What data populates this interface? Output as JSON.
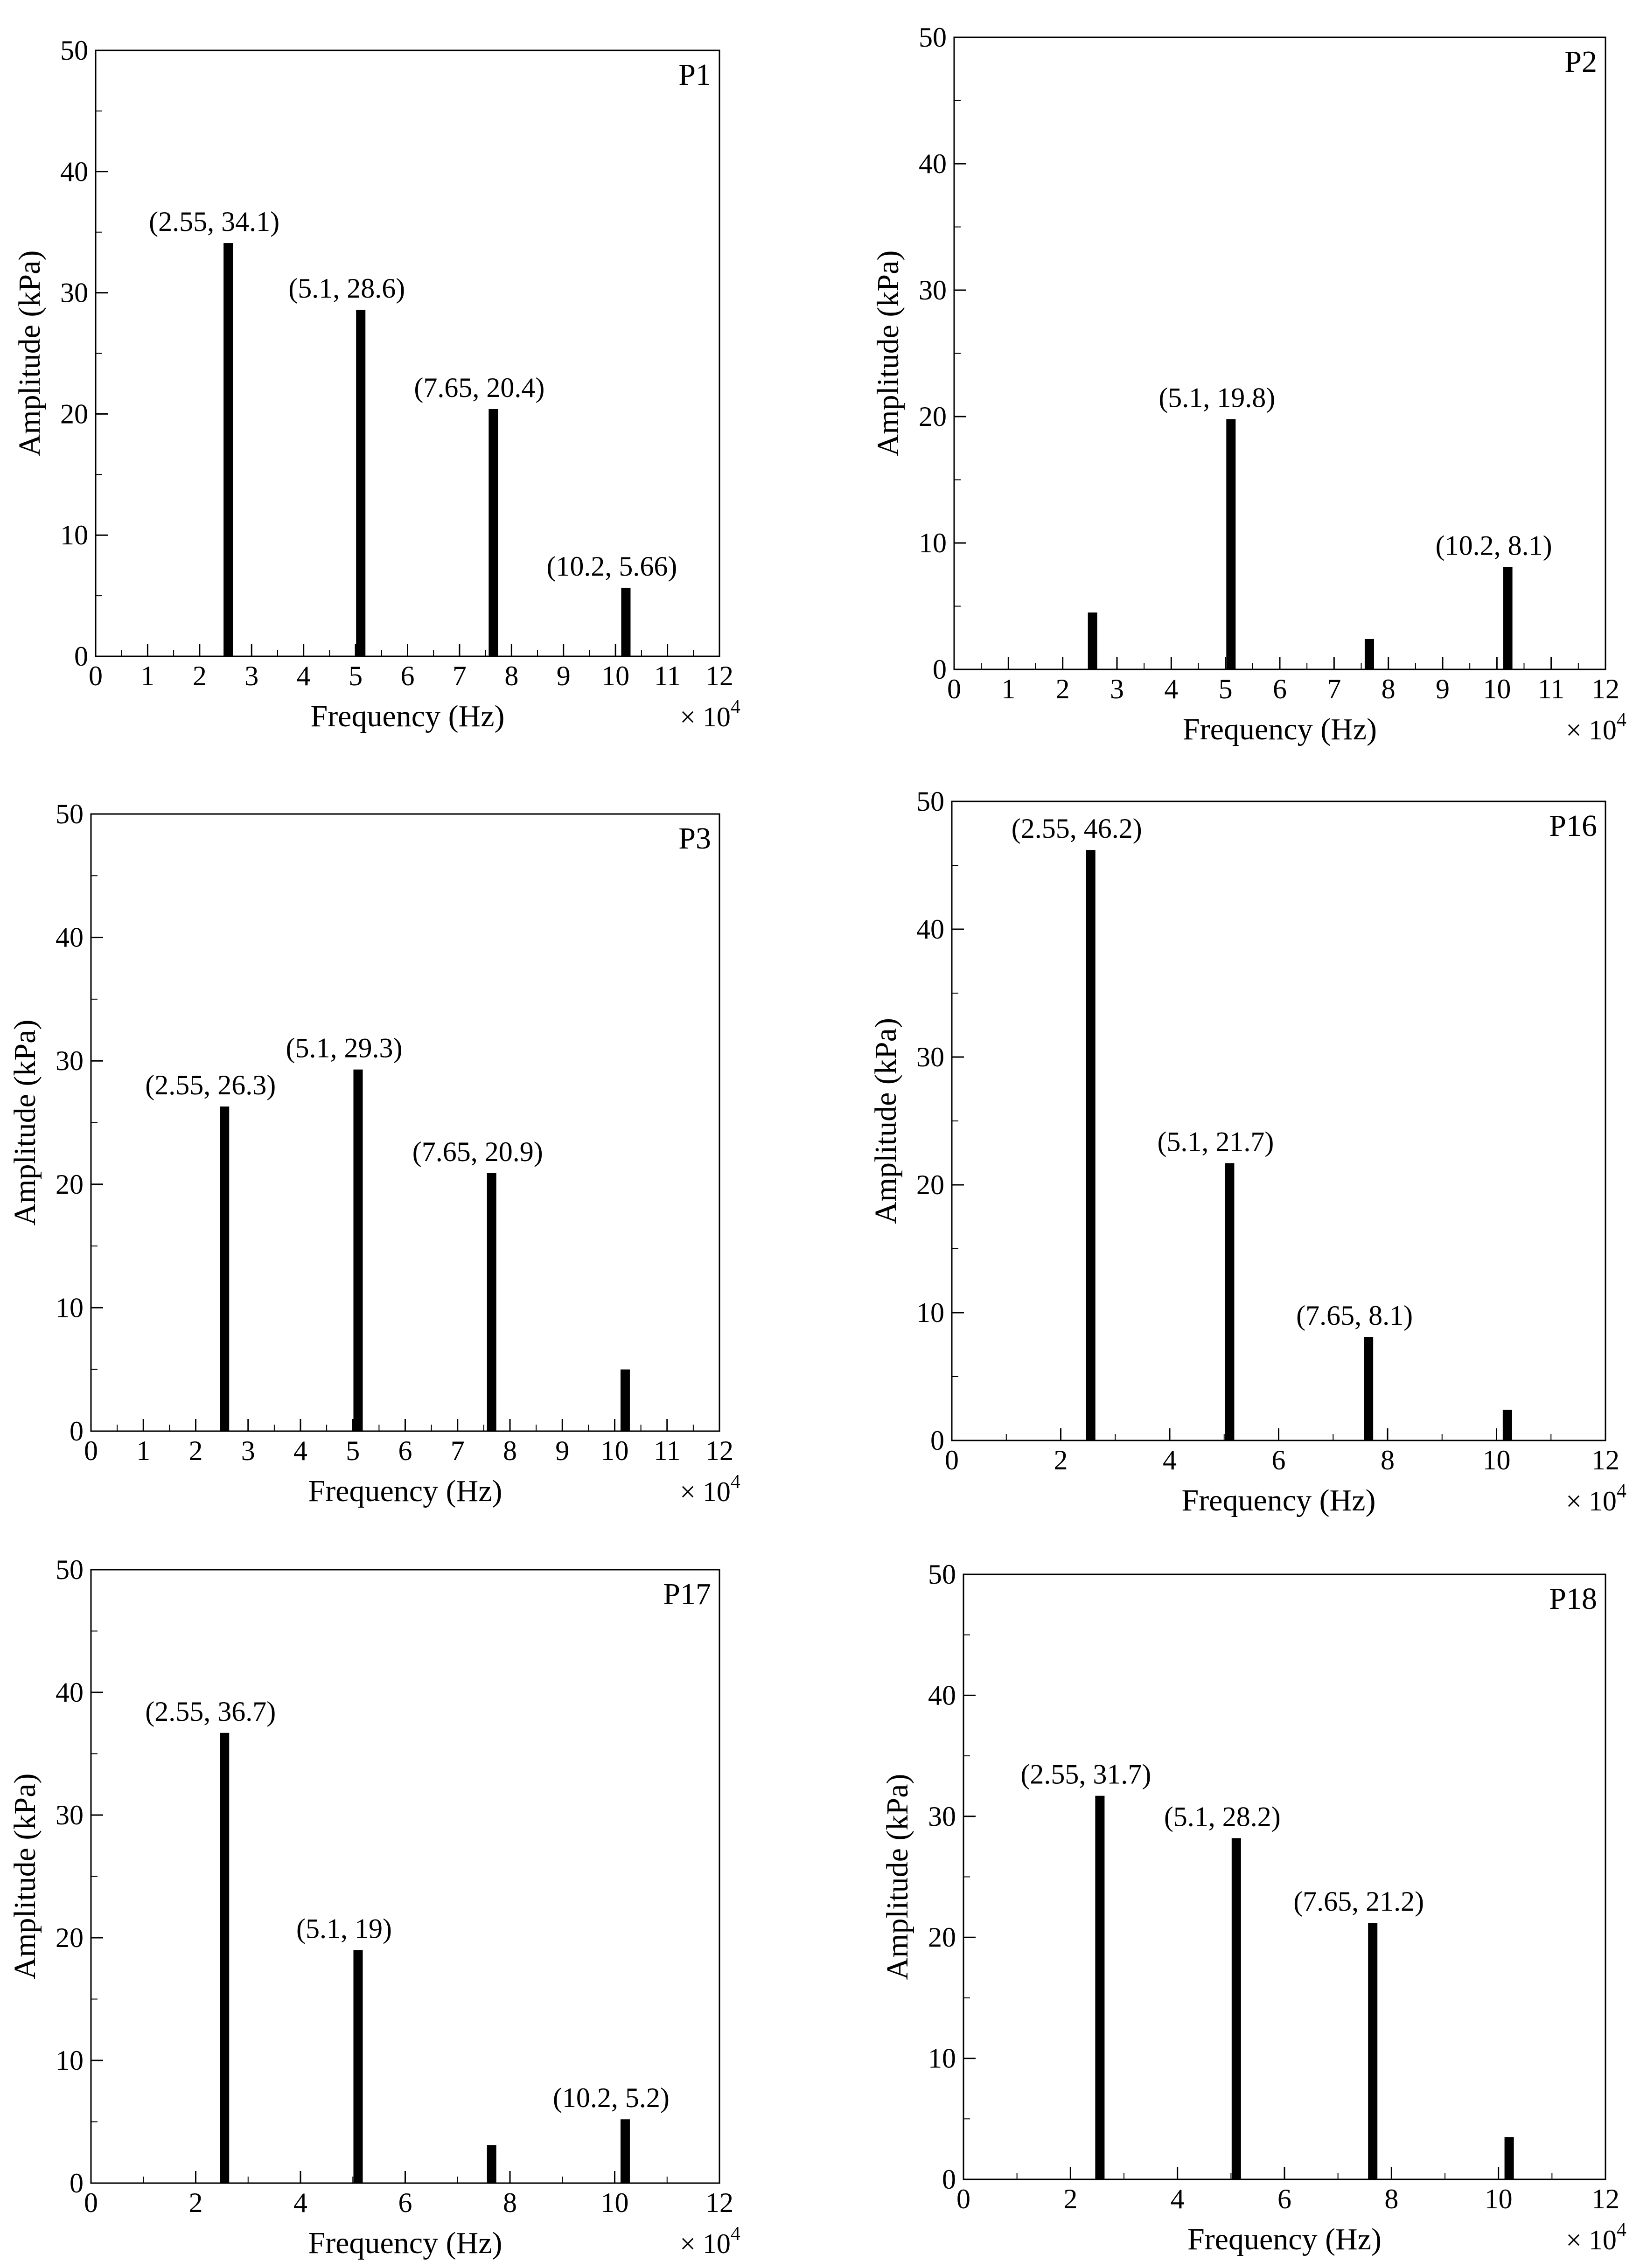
{
  "chart_data": [
    {
      "type": "bar",
      "title": "P1",
      "xlabel": "Frequency (Hz)",
      "ylabel": "Amplitude (kPa)",
      "x_multiplier": "× 10",
      "x_multiplier_exp": "4",
      "xlim": [
        0,
        12
      ],
      "ylim": [
        0,
        50
      ],
      "xticks": [
        0,
        1,
        2,
        3,
        4,
        5,
        6,
        7,
        8,
        9,
        10,
        11,
        12
      ],
      "yticks": [
        0,
        10,
        20,
        30,
        40,
        50
      ],
      "x": [
        2.55,
        5.1,
        7.65,
        10.2
      ],
      "values": [
        34.1,
        28.6,
        20.4,
        5.66
      ],
      "labels": [
        "(2.55, 34.1)",
        "(5.1, 28.6)",
        "(7.65, 20.4)",
        "(10.2, 5.66)"
      ]
    },
    {
      "type": "bar",
      "title": "P2",
      "xlabel": "Frequency (Hz)",
      "ylabel": "Amplitude (kPa)",
      "x_multiplier": "× 10",
      "x_multiplier_exp": "4",
      "xlim": [
        0,
        12
      ],
      "ylim": [
        0,
        50
      ],
      "xticks": [
        0,
        1,
        2,
        3,
        4,
        5,
        6,
        7,
        8,
        9,
        10,
        11,
        12
      ],
      "yticks": [
        0,
        10,
        20,
        30,
        40,
        50
      ],
      "x": [
        2.55,
        5.1,
        7.65,
        10.2
      ],
      "values": [
        4.5,
        19.8,
        2.4,
        8.1
      ],
      "labels": [
        "",
        "(5.1, 19.8)",
        "",
        "(10.2, 8.1)"
      ]
    },
    {
      "type": "bar",
      "title": "P3",
      "xlabel": "Frequency (Hz)",
      "ylabel": "Amplitude (kPa)",
      "x_multiplier": "× 10",
      "x_multiplier_exp": "4",
      "xlim": [
        0,
        12
      ],
      "ylim": [
        0,
        50
      ],
      "xticks": [
        0,
        1,
        2,
        3,
        4,
        5,
        6,
        7,
        8,
        9,
        10,
        11,
        12
      ],
      "yticks": [
        0,
        10,
        20,
        30,
        40,
        50
      ],
      "x": [
        2.55,
        5.1,
        7.65,
        10.2
      ],
      "values": [
        26.3,
        29.3,
        20.9,
        5.0
      ],
      "labels": [
        "(2.55, 26.3)",
        "(5.1, 29.3)",
        "(7.65, 20.9)",
        ""
      ]
    },
    {
      "type": "bar",
      "title": "P16",
      "xlabel": "Frequency (Hz)",
      "ylabel": "Amplitude (kPa)",
      "x_multiplier": "× 10",
      "x_multiplier_exp": "4",
      "xlim": [
        0,
        12
      ],
      "ylim": [
        0,
        50
      ],
      "xticks": [
        0,
        2,
        4,
        6,
        8,
        10,
        12
      ],
      "yticks": [
        0,
        10,
        20,
        30,
        40,
        50
      ],
      "x": [
        2.55,
        5.1,
        7.65,
        10.2
      ],
      "values": [
        46.2,
        21.7,
        8.1,
        2.4
      ],
      "labels": [
        "(2.55, 46.2)",
        "(5.1, 21.7)",
        "(7.65, 8.1)",
        ""
      ]
    },
    {
      "type": "bar",
      "title": "P17",
      "xlabel": "Frequency (Hz)",
      "ylabel": "Amplitude (kPa)",
      "x_multiplier": "× 10",
      "x_multiplier_exp": "4",
      "xlim": [
        0,
        12
      ],
      "ylim": [
        0,
        50
      ],
      "xticks": [
        0,
        2,
        4,
        6,
        8,
        10,
        12
      ],
      "yticks": [
        0,
        10,
        20,
        30,
        40,
        50
      ],
      "x": [
        2.55,
        5.1,
        7.65,
        10.2
      ],
      "values": [
        36.7,
        19,
        3.1,
        5.2
      ],
      "labels": [
        "(2.55, 36.7)",
        "(5.1, 19)",
        "",
        "(10.2, 5.2)"
      ]
    },
    {
      "type": "bar",
      "title": "P18",
      "xlabel": "Frequency (Hz)",
      "ylabel": "Amplitude (kPa)",
      "x_multiplier": "× 10",
      "x_multiplier_exp": "4",
      "xlim": [
        0,
        12
      ],
      "ylim": [
        0,
        50
      ],
      "xticks": [
        0,
        2,
        4,
        6,
        8,
        10,
        12
      ],
      "yticks": [
        0,
        10,
        20,
        30,
        40,
        50
      ],
      "x": [
        2.55,
        5.1,
        7.65,
        10.2
      ],
      "values": [
        31.7,
        28.2,
        21.2,
        3.5
      ],
      "labels": [
        "(2.55, 31.7)",
        "(5.1, 28.2)",
        "(7.65, 21.2)",
        ""
      ]
    }
  ]
}
